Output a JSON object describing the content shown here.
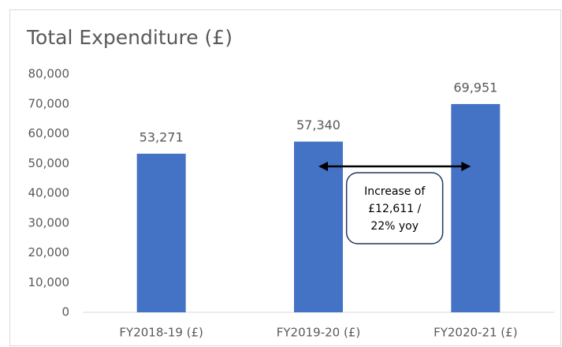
{
  "chart_data": {
    "type": "bar",
    "title": "Total Expenditure (£)",
    "categories": [
      "FY2018-19 (£)",
      "FY2019-20 (£)",
      "FY2020-21 (£)"
    ],
    "values": [
      53271,
      57340,
      69951
    ],
    "value_labels": [
      "53,271",
      "57,340",
      "69,951"
    ],
    "color": "#4472c4",
    "ylim": [
      0,
      80000
    ],
    "yticks": [
      0,
      {
        "value": 10000,
        "label": "10,000"
      },
      {
        "value": 20000,
        "label": "20,000"
      },
      {
        "value": 30000,
        "label": "30,000"
      },
      {
        "value": 40000,
        "label": "40,000"
      },
      {
        "value": 50000,
        "label": "50,000"
      },
      {
        "value": 60000,
        "label": "60,000"
      },
      {
        "value": 70000,
        "label": "70,000"
      },
      {
        "value": 80000,
        "label": "80,000"
      }
    ],
    "grid": false,
    "annotation": [
      "Increase of",
      "£12,611 /",
      "22% yoy"
    ]
  }
}
